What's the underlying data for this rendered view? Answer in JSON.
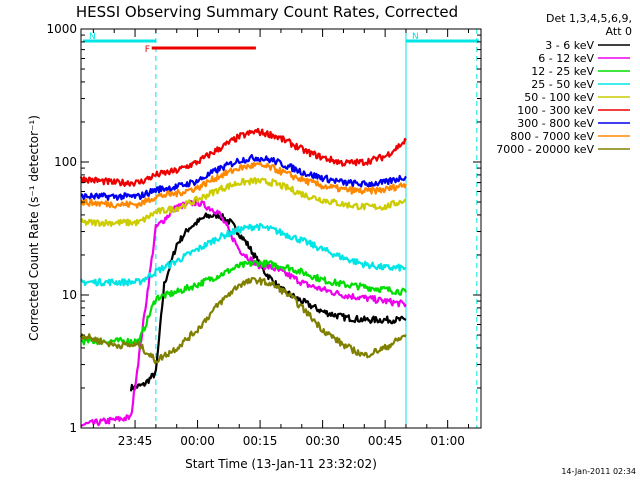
{
  "chart_data": {
    "type": "line",
    "title": "HESSI Observing Summary Count Rates, Corrected",
    "xlabel": "Start Time (13-Jan-11 23:32:02)",
    "ylabel": "Corrected Count Rate (s⁻¹ detector⁻¹)",
    "x_scale": "time",
    "x_start": "23:32:02",
    "x_end": "01:08:00",
    "x_tick_labels": [
      "23:45",
      "00:00",
      "00:15",
      "00:30",
      "00:45",
      "01:00"
    ],
    "y_scale": "log",
    "ylim": [
      1,
      1000
    ],
    "y_tick_labels": [
      "1",
      "10",
      "100",
      "1000"
    ],
    "legend_header": [
      "Det 1,3,4,5,6,9,",
      "Att 0"
    ],
    "timestamp": "14-Jan-2011 02:34",
    "flags": [
      {
        "label": "F",
        "color": "#ee0000",
        "start": "23:49",
        "end": "00:14"
      },
      {
        "label": "N",
        "color": "#00e5e5",
        "start": "23:32",
        "end": "23:50"
      },
      {
        "label": "N",
        "color": "#00e5e5",
        "start": "00:50",
        "end": "01:08"
      }
    ],
    "night_boundaries": [
      "23:50",
      "00:50",
      "01:07"
    ],
    "series": [
      {
        "name": "3 - 6 keV",
        "color": "#000000",
        "x": [
          "23:44",
          "23:47",
          "23:50",
          "23:52",
          "23:55",
          "23:58",
          "00:02",
          "00:05",
          "00:08",
          "00:12",
          "00:16",
          "00:20",
          "00:25",
          "00:30",
          "00:35",
          "00:40",
          "00:45",
          "00:48",
          "00:50"
        ],
        "y": [
          2,
          2.1,
          2.6,
          12,
          24,
          32,
          39,
          40,
          35,
          24,
          15,
          11,
          9,
          7.5,
          6.8,
          6.5,
          6.5,
          6.5,
          6.5
        ]
      },
      {
        "name": "6 - 12 keV",
        "color": "#ee00ee",
        "x": [
          "23:32",
          "23:36",
          "23:44",
          "23:50",
          "23:55",
          "00:00",
          "00:05",
          "00:10",
          "00:14",
          "00:18",
          "00:22",
          "00:26",
          "00:30",
          "00:35",
          "00:40",
          "00:45",
          "00:50"
        ],
        "y": [
          1.05,
          1.1,
          1.2,
          32,
          46,
          50,
          42,
          22,
          17,
          16,
          14,
          12,
          11,
          10,
          9.5,
          9,
          8.5
        ]
      },
      {
        "name": "12 - 25 keV",
        "color": "#00dd00",
        "x": [
          "23:32",
          "23:40",
          "23:46",
          "23:50",
          "23:55",
          "00:00",
          "00:05",
          "00:10",
          "00:14",
          "00:18",
          "00:22",
          "00:26",
          "00:30",
          "00:35",
          "00:40",
          "00:45",
          "00:50"
        ],
        "y": [
          4.5,
          4.5,
          4.5,
          9.5,
          10.5,
          12,
          14,
          16.5,
          17.5,
          17,
          16,
          14.5,
          13,
          12,
          11.5,
          11,
          10.5
        ]
      },
      {
        "name": "25 - 50 keV",
        "color": "#00e5e5",
        "x": [
          "23:32",
          "23:40",
          "23:46",
          "23:50",
          "23:55",
          "00:00",
          "00:05",
          "00:10",
          "00:14",
          "00:18",
          "00:22",
          "00:26",
          "00:30",
          "00:35",
          "00:40",
          "00:45",
          "00:50"
        ],
        "y": [
          12.5,
          12.5,
          12.5,
          15,
          18,
          22,
          27,
          31,
          33,
          31,
          28,
          25,
          22,
          19,
          17,
          16,
          16
        ]
      },
      {
        "name": "50 - 100 keV",
        "color": "#cccc00",
        "x": [
          "23:32",
          "23:40",
          "23:46",
          "23:50",
          "23:55",
          "00:00",
          "00:05",
          "00:10",
          "00:14",
          "00:18",
          "00:22",
          "00:26",
          "00:30",
          "00:35",
          "00:40",
          "00:45",
          "00:50"
        ],
        "y": [
          35,
          35,
          35,
          42,
          45,
          52,
          62,
          70,
          72,
          70,
          63,
          56,
          52,
          48,
          46,
          46,
          52
        ]
      },
      {
        "name": "100 - 300 keV",
        "color": "#ee0000",
        "x": [
          "23:32",
          "23:40",
          "23:46",
          "23:50",
          "23:55",
          "00:00",
          "00:05",
          "00:10",
          "00:14",
          "00:18",
          "00:22",
          "00:26",
          "00:30",
          "00:35",
          "00:40",
          "00:45",
          "00:50"
        ],
        "y": [
          75,
          70,
          70,
          80,
          86,
          100,
          125,
          155,
          170,
          160,
          140,
          120,
          108,
          98,
          100,
          110,
          145
        ]
      },
      {
        "name": "300 - 800 keV",
        "color": "#0000ee",
        "x": [
          "23:32",
          "23:40",
          "23:46",
          "23:50",
          "23:55",
          "00:00",
          "00:05",
          "00:10",
          "00:14",
          "00:18",
          "00:22",
          "00:26",
          "00:30",
          "00:35",
          "00:40",
          "00:45",
          "00:50"
        ],
        "y": [
          55,
          55,
          55,
          62,
          65,
          72,
          88,
          103,
          108,
          103,
          92,
          82,
          76,
          70,
          68,
          70,
          78
        ]
      },
      {
        "name": "800 - 7000 keV",
        "color": "#ff8800",
        "x": [
          "23:32",
          "23:40",
          "23:46",
          "23:50",
          "23:55",
          "00:00",
          "00:05",
          "00:10",
          "00:14",
          "00:18",
          "00:22",
          "00:26",
          "00:30",
          "00:35",
          "00:40",
          "00:45",
          "00:50"
        ],
        "y": [
          50,
          48,
          48,
          55,
          58,
          64,
          78,
          90,
          95,
          90,
          80,
          72,
          66,
          62,
          60,
          62,
          68
        ]
      },
      {
        "name": "7000 - 20000 keV",
        "color": "#808000",
        "x": [
          "23:32",
          "23:40",
          "23:46",
          "23:50",
          "23:55",
          "00:00",
          "00:05",
          "00:10",
          "00:14",
          "00:18",
          "00:22",
          "00:26",
          "00:30",
          "00:35",
          "00:40",
          "00:45",
          "00:50"
        ],
        "y": [
          5,
          4.2,
          4.2,
          3.2,
          4,
          5.5,
          8.5,
          12,
          13,
          12,
          10,
          7.5,
          5.5,
          4.2,
          3.5,
          4,
          5
        ]
      }
    ]
  }
}
